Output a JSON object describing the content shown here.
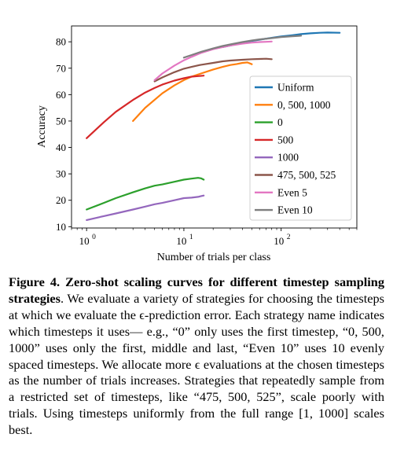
{
  "figure": {
    "caption_label": "Figure 4.",
    "caption_title": "Zero-shot scaling curves for different timestep sampling strategies",
    "caption_body": ". We evaluate a variety of strategies for choosing the timesteps at which we evaluate the ϵ-prediction error. Each strategy name indicates which timesteps it uses— e.g., “0” only uses the first timestep, “0, 500, 1000” uses only the first, middle and last, “Even 10” uses 10 evenly spaced timesteps. We allocate more ϵ evaluations at the chosen timesteps as the number of trials increases. Strategies that repeatedly sample from a restricted set of timesteps, like “475, 500, 525”, scale poorly with trials. Using timesteps uniformly from the full range [1, 1000] scales best."
  },
  "chart_data": {
    "type": "line",
    "xlabel": "Number of trials per class",
    "ylabel": "Accuracy",
    "xscale": "log",
    "xlim": [
      0.7,
      600
    ],
    "ylim": [
      9.5,
      86
    ],
    "xticks": [
      {
        "value": 1,
        "label": "10",
        "exp": "0"
      },
      {
        "value": 10,
        "label": "10",
        "exp": "1"
      },
      {
        "value": 100,
        "label": "10",
        "exp": "2"
      }
    ],
    "yticks": [
      10,
      20,
      30,
      40,
      50,
      60,
      70,
      80
    ],
    "grid": false,
    "legend_position": "right-center",
    "series": [
      {
        "name": "Uniform",
        "color": "#1f77b4",
        "x": [
          25,
          30,
          40,
          50,
          60,
          80,
          100,
          130,
          160,
          200,
          250,
          300,
          400
        ],
        "y": [
          78.0,
          78.6,
          79.6,
          80.3,
          80.8,
          81.5,
          82.0,
          82.5,
          82.9,
          83.2,
          83.4,
          83.5,
          83.4
        ]
      },
      {
        "name": "0, 500, 1000",
        "color": "#ff7f0e",
        "x": [
          3,
          4,
          6,
          8,
          10,
          12,
          15,
          20,
          25,
          30,
          35,
          40,
          45,
          50
        ],
        "y": [
          50.0,
          55.0,
          60.5,
          63.5,
          65.5,
          66.8,
          68.0,
          69.5,
          70.5,
          71.2,
          71.6,
          72.0,
          72.2,
          71.5
        ]
      },
      {
        "name": "0",
        "color": "#2ca02c",
        "x": [
          1,
          1.5,
          2,
          3,
          4,
          5,
          6,
          8,
          10,
          12,
          14,
          15,
          16
        ],
        "y": [
          16.5,
          19.0,
          20.8,
          23.0,
          24.5,
          25.5,
          26.0,
          27.0,
          27.8,
          28.2,
          28.5,
          28.3,
          27.8
        ]
      },
      {
        "name": "500",
        "color": "#d62728",
        "x": [
          1,
          1.5,
          2,
          3,
          4,
          5,
          6,
          8,
          10,
          12,
          14,
          16
        ],
        "y": [
          43.5,
          49.5,
          53.5,
          58.0,
          60.8,
          62.5,
          63.8,
          65.3,
          66.2,
          66.8,
          67.0,
          67.2
        ]
      },
      {
        "name": "1000",
        "color": "#9467bd",
        "x": [
          1,
          1.5,
          2,
          3,
          4,
          5,
          6,
          8,
          10,
          12,
          14,
          16
        ],
        "y": [
          12.5,
          14.0,
          15.0,
          16.5,
          17.6,
          18.5,
          19.0,
          20.0,
          20.8,
          21.0,
          21.3,
          21.8
        ]
      },
      {
        "name": "475, 500, 525",
        "color": "#8c564b",
        "x": [
          5,
          6,
          8,
          10,
          12,
          15,
          20,
          25,
          30,
          40,
          50,
          60,
          70,
          80
        ],
        "y": [
          65.0,
          66.5,
          68.5,
          69.8,
          70.5,
          71.3,
          72.0,
          72.6,
          72.9,
          73.2,
          73.4,
          73.5,
          73.6,
          73.4
        ]
      },
      {
        "name": "Even 5",
        "color": "#e377c2",
        "x": [
          5,
          6,
          8,
          10,
          12,
          15,
          20,
          25,
          30,
          40,
          50,
          60,
          70,
          80
        ],
        "y": [
          65.5,
          68.0,
          71.0,
          73.0,
          74.3,
          75.8,
          77.2,
          78.0,
          78.6,
          79.3,
          79.7,
          79.9,
          80.0,
          80.1
        ]
      },
      {
        "name": "Even 10",
        "color": "#7f7f7f",
        "x": [
          10,
          12,
          15,
          20,
          25,
          30,
          40,
          50,
          60,
          80,
          100,
          130,
          160
        ],
        "y": [
          74.0,
          75.0,
          76.2,
          77.5,
          78.4,
          79.0,
          79.9,
          80.5,
          80.9,
          81.4,
          81.8,
          82.1,
          82.3
        ]
      }
    ]
  }
}
